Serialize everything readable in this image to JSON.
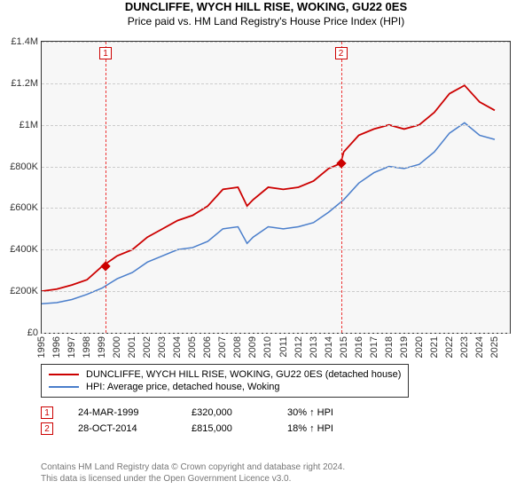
{
  "title": "DUNCLIFFE, WYCH HILL RISE, WOKING, GU22 0ES",
  "subtitle": "Price paid vs. HM Land Registry's House Price Index (HPI)",
  "chart": {
    "type": "line",
    "background_color": "#f7f7f7",
    "border_color": "#333333",
    "grid_color": "#cccccc",
    "x_domain": [
      1995,
      2026
    ],
    "y_domain": [
      0,
      1400000
    ],
    "x_ticks": [
      1995,
      1996,
      1997,
      1998,
      1999,
      2000,
      2001,
      2002,
      2003,
      2004,
      2005,
      2006,
      2007,
      2008,
      2009,
      2010,
      2011,
      2012,
      2013,
      2014,
      2015,
      2016,
      2017,
      2018,
      2019,
      2020,
      2021,
      2022,
      2023,
      2024,
      2025
    ],
    "y_ticks": [
      {
        "v": 0,
        "label": "£0"
      },
      {
        "v": 200000,
        "label": "£200K"
      },
      {
        "v": 400000,
        "label": "£400K"
      },
      {
        "v": 600000,
        "label": "£600K"
      },
      {
        "v": 800000,
        "label": "£800K"
      },
      {
        "v": 1000000,
        "label": "£1M"
      },
      {
        "v": 1200000,
        "label": "£1.2M"
      },
      {
        "v": 1400000,
        "label": "£1.4M"
      }
    ],
    "series": [
      {
        "name": "DUNCLIFFE, WYCH HILL RISE, WOKING, GU22 0ES (detached house)",
        "color": "#cc0000",
        "width": 1.8,
        "data": [
          [
            1995,
            200000
          ],
          [
            1996,
            210000
          ],
          [
            1997,
            230000
          ],
          [
            1998,
            255000
          ],
          [
            1999,
            320000
          ],
          [
            2000,
            370000
          ],
          [
            2001,
            400000
          ],
          [
            2002,
            460000
          ],
          [
            2003,
            500000
          ],
          [
            2004,
            540000
          ],
          [
            2005,
            565000
          ],
          [
            2006,
            610000
          ],
          [
            2007,
            690000
          ],
          [
            2008,
            700000
          ],
          [
            2008.6,
            610000
          ],
          [
            2009,
            640000
          ],
          [
            2010,
            700000
          ],
          [
            2011,
            690000
          ],
          [
            2012,
            700000
          ],
          [
            2013,
            730000
          ],
          [
            2014,
            790000
          ],
          [
            2014.8,
            815000
          ],
          [
            2015,
            870000
          ],
          [
            2016,
            950000
          ],
          [
            2017,
            980000
          ],
          [
            2018,
            1000000
          ],
          [
            2019,
            980000
          ],
          [
            2020,
            1000000
          ],
          [
            2021,
            1060000
          ],
          [
            2022,
            1150000
          ],
          [
            2023,
            1190000
          ],
          [
            2024,
            1110000
          ],
          [
            2025,
            1070000
          ]
        ]
      },
      {
        "name": "HPI: Average price, detached house, Woking",
        "color": "#4a7ecb",
        "width": 1.5,
        "data": [
          [
            1995,
            140000
          ],
          [
            1996,
            145000
          ],
          [
            1997,
            160000
          ],
          [
            1998,
            185000
          ],
          [
            1999,
            215000
          ],
          [
            2000,
            260000
          ],
          [
            2001,
            290000
          ],
          [
            2002,
            340000
          ],
          [
            2003,
            370000
          ],
          [
            2004,
            400000
          ],
          [
            2005,
            410000
          ],
          [
            2006,
            440000
          ],
          [
            2007,
            500000
          ],
          [
            2008,
            510000
          ],
          [
            2008.6,
            430000
          ],
          [
            2009,
            460000
          ],
          [
            2010,
            510000
          ],
          [
            2011,
            500000
          ],
          [
            2012,
            510000
          ],
          [
            2013,
            530000
          ],
          [
            2014,
            580000
          ],
          [
            2015,
            640000
          ],
          [
            2016,
            720000
          ],
          [
            2017,
            770000
          ],
          [
            2018,
            800000
          ],
          [
            2019,
            790000
          ],
          [
            2020,
            810000
          ],
          [
            2021,
            870000
          ],
          [
            2022,
            960000
          ],
          [
            2023,
            1010000
          ],
          [
            2024,
            950000
          ],
          [
            2025,
            930000
          ]
        ]
      }
    ],
    "markers": [
      {
        "x": 1999.23,
        "y": 320000,
        "color": "#cc0000"
      },
      {
        "x": 2014.82,
        "y": 815000,
        "color": "#cc0000"
      }
    ],
    "event_lines": [
      {
        "x": 1999.23,
        "label": "1"
      },
      {
        "x": 2014.82,
        "label": "2"
      }
    ],
    "tick_fontsize": 11
  },
  "legend": {
    "items": [
      {
        "color": "#cc0000",
        "label": "DUNCLIFFE, WYCH HILL RISE, WOKING, GU22 0ES (detached house)"
      },
      {
        "color": "#4a7ecb",
        "label": "HPI: Average price, detached house, Woking"
      }
    ]
  },
  "events": [
    {
      "n": "1",
      "date": "24-MAR-1999",
      "price": "£320,000",
      "delta": "30% ↑ HPI"
    },
    {
      "n": "2",
      "date": "28-OCT-2014",
      "price": "£815,000",
      "delta": "18% ↑ HPI"
    }
  ],
  "footer_line1": "Contains HM Land Registry data © Crown copyright and database right 2024.",
  "footer_line2": "This data is licensed under the Open Government Licence v3.0."
}
